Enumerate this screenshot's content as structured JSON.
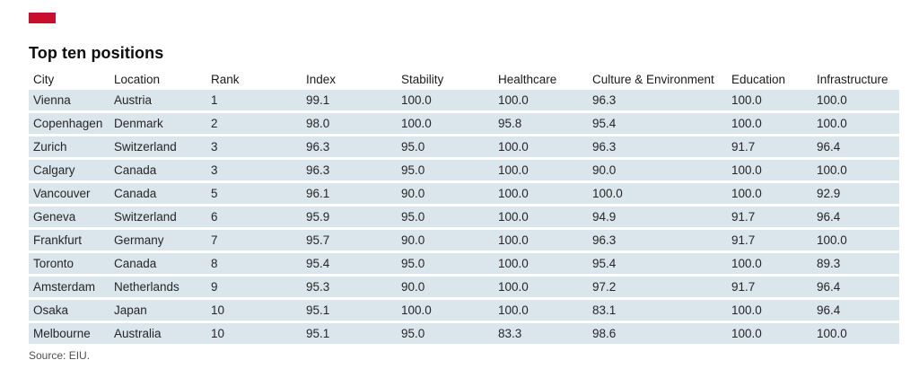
{
  "title": "Top ten positions",
  "source": "Source: EIU.",
  "colors": {
    "brand_red": "#c8102e",
    "row_band": "#dbe6ec",
    "text": "#262626",
    "source_text": "#4f4f4f"
  },
  "chart_data": {
    "type": "table",
    "title": "Top ten positions",
    "columns": [
      "City",
      "Location",
      "Rank",
      "Index",
      "Stability",
      "Healthcare",
      "Culture & Environment",
      "Education",
      "Infrastructure"
    ],
    "rows": [
      [
        "Vienna",
        "Austria",
        "1",
        "99.1",
        "100.0",
        "100.0",
        "96.3",
        "100.0",
        "100.0"
      ],
      [
        "Copenhagen",
        "Denmark",
        "2",
        "98.0",
        "100.0",
        "95.8",
        "95.4",
        "100.0",
        "100.0"
      ],
      [
        "Zurich",
        "Switzerland",
        "3",
        "96.3",
        "95.0",
        "100.0",
        "96.3",
        "91.7",
        "96.4"
      ],
      [
        "Calgary",
        "Canada",
        "3",
        "96.3",
        "95.0",
        "100.0",
        "90.0",
        "100.0",
        "100.0"
      ],
      [
        "Vancouver",
        "Canada",
        "5",
        "96.1",
        "90.0",
        "100.0",
        "100.0",
        "100.0",
        "92.9"
      ],
      [
        "Geneva",
        "Switzerland",
        "6",
        "95.9",
        "95.0",
        "100.0",
        "94.9",
        "91.7",
        "96.4"
      ],
      [
        "Frankfurt",
        "Germany",
        "7",
        "95.7",
        "90.0",
        "100.0",
        "96.3",
        "91.7",
        "100.0"
      ],
      [
        "Toronto",
        "Canada",
        "8",
        "95.4",
        "95.0",
        "100.0",
        "95.4",
        "100.0",
        "89.3"
      ],
      [
        "Amsterdam",
        "Netherlands",
        "9",
        "95.3",
        "90.0",
        "100.0",
        "97.2",
        "91.7",
        "96.4"
      ],
      [
        "Osaka",
        "Japan",
        "10",
        "95.1",
        "100.0",
        "100.0",
        "83.1",
        "100.0",
        "96.4"
      ],
      [
        "Melbourne",
        "Australia",
        "10",
        "95.1",
        "95.0",
        "83.3",
        "98.6",
        "100.0",
        "100.0"
      ]
    ],
    "layout": {
      "striped_rows": true,
      "header_background": "none",
      "row_band_color": "#dbe6ec"
    }
  }
}
